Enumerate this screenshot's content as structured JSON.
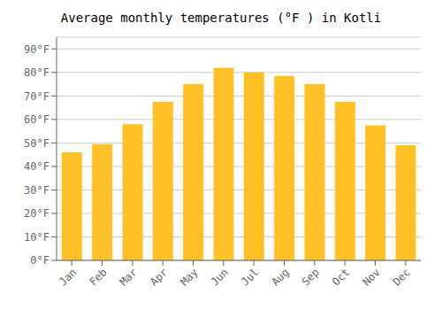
{
  "chart_data": {
    "type": "bar",
    "title": "Average monthly temperatures (°F ) in Kotli",
    "categories": [
      "Jan",
      "Feb",
      "Mar",
      "Apr",
      "May",
      "Jun",
      "Jul",
      "Aug",
      "Sep",
      "Oct",
      "Nov",
      "Dec"
    ],
    "values": [
      46,
      49.5,
      58,
      67.5,
      75,
      82,
      80,
      78.5,
      75,
      67.5,
      57.5,
      49
    ],
    "color": "#FFC125",
    "ylim": [
      0,
      95
    ],
    "yticks": [
      {
        "value": 0,
        "label": "0°F"
      },
      {
        "value": 10,
        "label": "10°F"
      },
      {
        "value": 20,
        "label": "20°F"
      },
      {
        "value": 30,
        "label": "30°F"
      },
      {
        "value": 40,
        "label": "40°F"
      },
      {
        "value": 50,
        "label": "50°F"
      },
      {
        "value": 60,
        "label": "60°F"
      },
      {
        "value": 70,
        "label": "70°F"
      },
      {
        "value": 80,
        "label": "80°F"
      },
      {
        "value": 90,
        "label": "90°F"
      }
    ],
    "grid": true
  }
}
